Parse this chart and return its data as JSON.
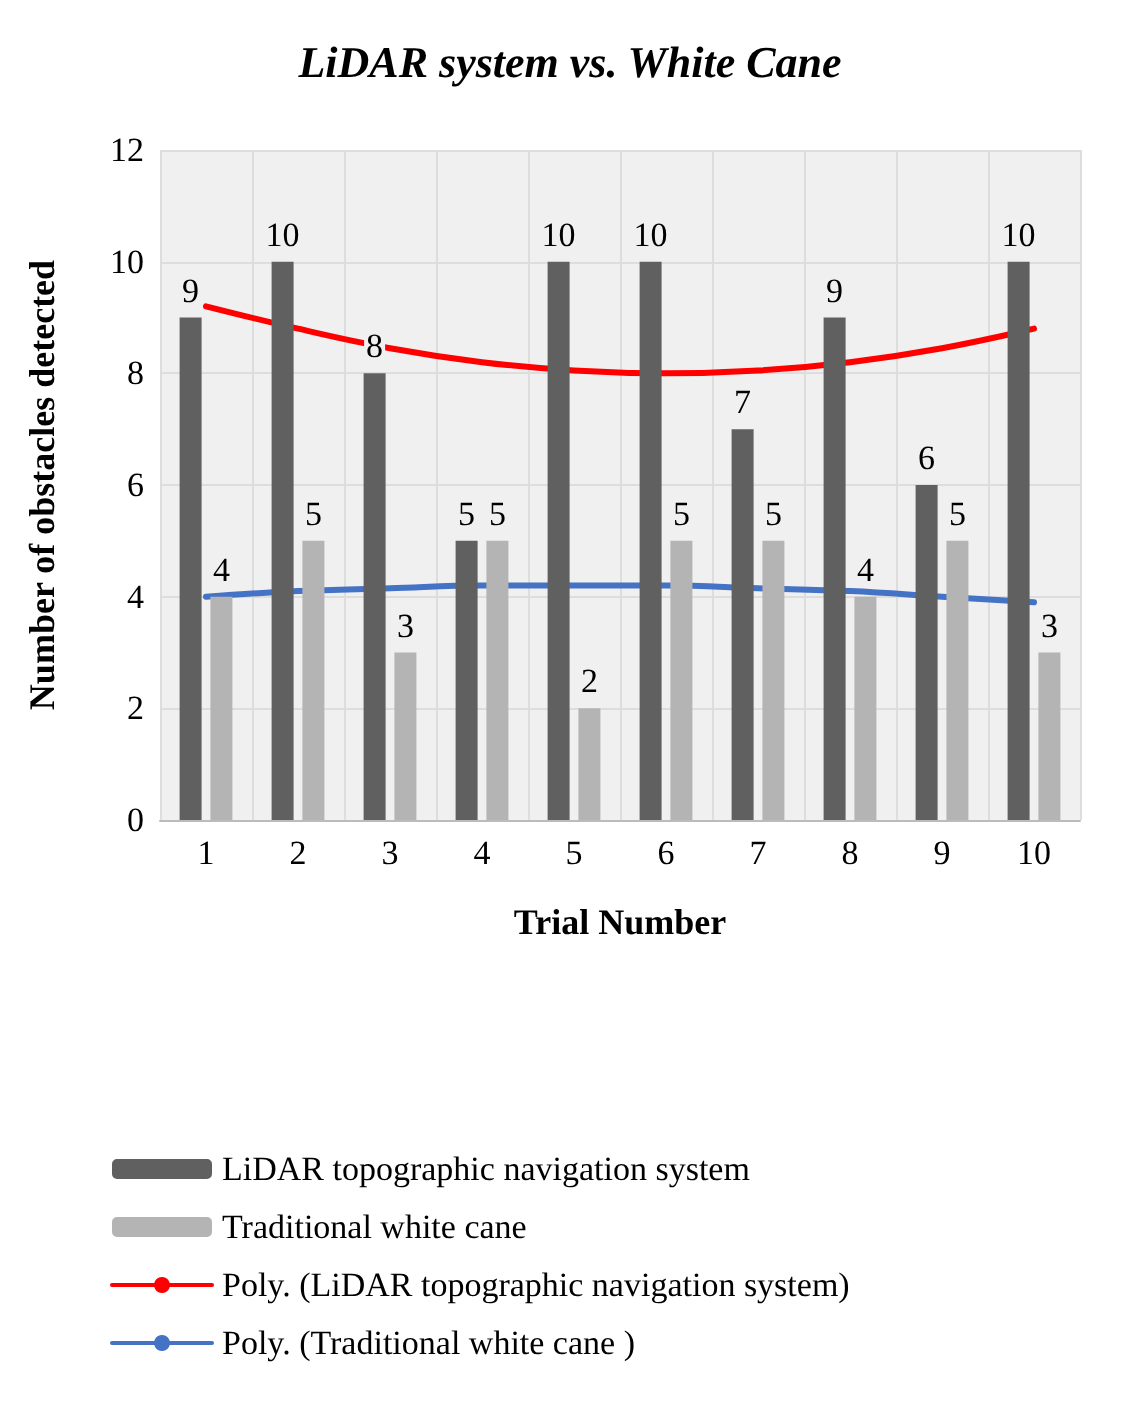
{
  "chart_data": {
    "type": "bar",
    "title": "LiDAR system vs. White Cane",
    "xlabel": "Trial Number",
    "ylabel": "Number of obstacles detected",
    "categories": [
      "1",
      "2",
      "3",
      "4",
      "5",
      "6",
      "7",
      "8",
      "9",
      "10"
    ],
    "series": [
      {
        "name": "LiDAR topographic navigation system",
        "color": "#606060",
        "values": [
          9,
          10,
          8,
          5,
          10,
          10,
          7,
          9,
          6,
          10
        ],
        "value_labels": [
          "9",
          "10",
          "8",
          "5",
          "10",
          "10",
          "7",
          "9",
          "6",
          "10"
        ]
      },
      {
        "name": "Traditional white cane",
        "color": "#b4b4b4",
        "values": [
          4,
          5,
          3,
          5,
          2,
          5,
          5,
          4,
          5,
          3
        ],
        "value_labels": [
          "4",
          "5",
          "3",
          "5",
          "2",
          "5",
          "5",
          "4",
          "5",
          "3"
        ]
      },
      {
        "name": "Poly. (LiDAR topographic navigation system)",
        "type": "line",
        "color": "#ff0000",
        "values": [
          9.2,
          8.8,
          8.45,
          8.2,
          8.05,
          8.0,
          8.05,
          8.2,
          8.45,
          8.8
        ]
      },
      {
        "name": "Poly. (Traditional white cane )",
        "type": "line",
        "color": "#4472c4",
        "values": [
          4.0,
          4.1,
          4.15,
          4.2,
          4.2,
          4.2,
          4.15,
          4.1,
          4.0,
          3.9
        ]
      }
    ],
    "ylim": [
      0,
      12
    ],
    "yticks": [
      0,
      2,
      4,
      6,
      8,
      10,
      12
    ],
    "grid": true,
    "legend": "bottom",
    "marker": "none"
  }
}
